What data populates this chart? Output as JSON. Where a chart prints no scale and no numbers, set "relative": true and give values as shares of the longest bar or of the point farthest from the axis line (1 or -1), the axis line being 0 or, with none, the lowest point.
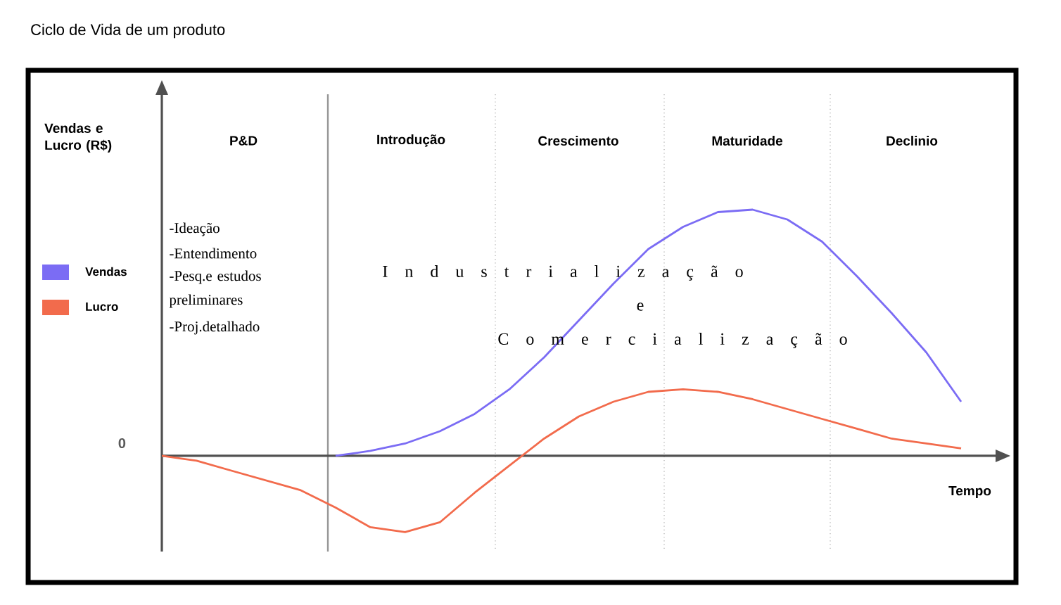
{
  "chart_data": {
    "type": "line",
    "title": "Ciclo de Vida de um produto",
    "xlabel": "Tempo",
    "relative": true,
    "categories": [
      null,
      null,
      null,
      null,
      null,
      null,
      null,
      null,
      null,
      null,
      null,
      null,
      null,
      null,
      null,
      null,
      null,
      null,
      null,
      null,
      null,
      null,
      null,
      null
    ],
    "series": [
      {
        "name": "Vendas",
        "color": "#7b6cf4",
        "values": [
          null,
          null,
          null,
          null,
          null,
          0.0,
          0.02,
          0.05,
          0.1,
          0.17,
          0.27,
          0.4,
          0.55,
          0.7,
          0.84,
          0.93,
          0.99,
          1.0,
          0.96,
          0.87,
          0.73,
          0.58,
          0.42,
          0.22
        ]
      },
      {
        "name": "Lucro",
        "color": "#f26b4c",
        "values": [
          0.0,
          -0.02,
          -0.06,
          -0.1,
          -0.14,
          -0.21,
          -0.29,
          -0.31,
          -0.27,
          -0.15,
          -0.04,
          0.07,
          0.16,
          0.22,
          0.26,
          0.27,
          0.26,
          0.23,
          0.19,
          0.15,
          0.11,
          0.07,
          0.05,
          0.03
        ]
      }
    ],
    "annotations": [
      "Vendas e Lucro (R$)",
      "0",
      "P&D",
      "Introdução",
      "Crescimento",
      "Maturidade",
      "Declinio",
      "-Ideação",
      "-Entendimento",
      "-Pesq.e estudos preliminares",
      "-Proj.detalhado",
      "I n d u s t r i a l i z a ç ã o",
      "e",
      "C o m e r c i a l i z a ç ã o"
    ],
    "legend": "left"
  }
}
